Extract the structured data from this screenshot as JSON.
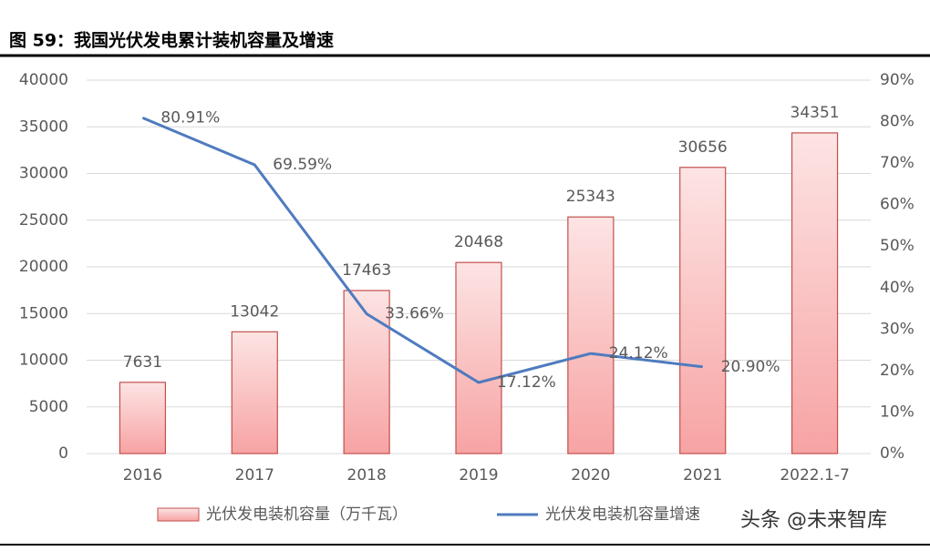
{
  "chart_data": {
    "type": "bar_line",
    "title": "图 59：我国光伏发电累计装机容量及增速",
    "categories": [
      "2016",
      "2017",
      "2018",
      "2019",
      "2020",
      "2021",
      "2022.1-7"
    ],
    "series": [
      {
        "name": "光伏发电装机容量（万千瓦）",
        "type": "bar",
        "color": "#c0504d",
        "values": [
          7631,
          13042,
          17463,
          20468,
          25343,
          30656,
          34351
        ]
      },
      {
        "name": "光伏发电装机容量增速",
        "type": "line",
        "axis": "y2",
        "color": "#4f7bbf",
        "values": [
          80.91,
          69.59,
          33.66,
          17.12,
          24.12,
          20.9,
          null
        ],
        "value_labels": [
          "80.91%",
          "69.59%",
          "33.66%",
          "17.12%",
          "24.12%",
          "20.90%",
          null
        ]
      }
    ],
    "ylim": [
      0,
      40000
    ],
    "yticks": [
      0,
      5000,
      10000,
      15000,
      20000,
      25000,
      30000,
      35000,
      40000
    ],
    "y2lim": [
      0,
      90
    ],
    "y2ticks": [
      {
        "value": 0,
        "label": "0%"
      },
      {
        "value": 10,
        "label": "10%"
      },
      {
        "value": 20,
        "label": "20%"
      },
      {
        "value": 30,
        "label": "30%"
      },
      {
        "value": 40,
        "label": "40%"
      },
      {
        "value": 50,
        "label": "50%"
      },
      {
        "value": 60,
        "label": "60%"
      },
      {
        "value": 70,
        "label": "70%"
      },
      {
        "value": 80,
        "label": "80%"
      },
      {
        "value": 90,
        "label": "90%"
      }
    ],
    "grid": true,
    "legend": "bottom",
    "watermark": "头条 @未来智库"
  }
}
